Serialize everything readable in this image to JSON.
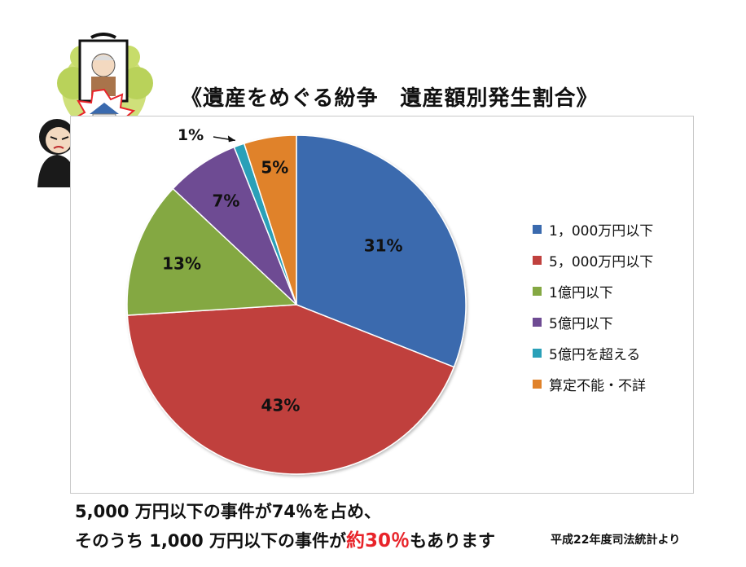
{
  "title": "《遺産をめぐる紛争　遺産額別発生割合》",
  "chart_data": {
    "type": "pie",
    "title": "《遺産をめぐる紛争　遺産額別発生割合》",
    "categories": [
      "1，000万円以下",
      "5，000万円以下",
      "1億円以下",
      "5億円以下",
      "5億円を超える",
      "算定不能・不詳"
    ],
    "values": [
      31,
      43,
      13,
      7,
      1,
      5
    ],
    "data_labels": [
      "31%",
      "43%",
      "13%",
      "7%",
      "1%",
      "5%"
    ],
    "colors": [
      "#3a6aae",
      "#c0413e",
      "#84a843",
      "#6e4b93",
      "#2aa0b8",
      "#e0822a"
    ],
    "start_angle_deg": 0,
    "direction": "clockwise",
    "legend_position": "right"
  },
  "footer": {
    "line1": "5,000 万円以下の事件が74％を占め、",
    "line2_prefix": "そのうち 1,000 万円以下の事件が",
    "line2_highlight": "約30％",
    "line2_suffix": "もあります"
  },
  "source": "平成22年度司法統計より",
  "illustration": "inheritance-dispute-illustration"
}
